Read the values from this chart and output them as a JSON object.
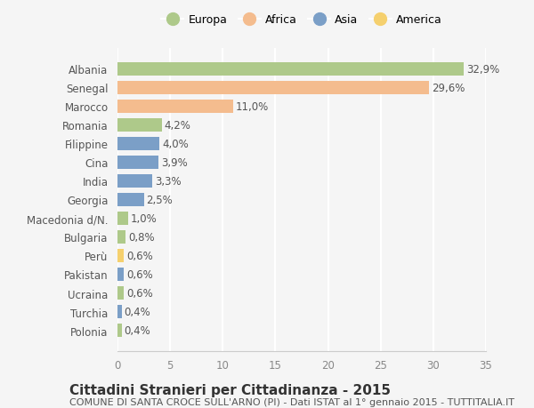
{
  "countries": [
    "Albania",
    "Senegal",
    "Marocco",
    "Romania",
    "Filippine",
    "Cina",
    "India",
    "Georgia",
    "Macedonia d/N.",
    "Bulgaria",
    "Perù",
    "Pakistan",
    "Ucraina",
    "Turchia",
    "Polonia"
  ],
  "values": [
    32.9,
    29.6,
    11.0,
    4.2,
    4.0,
    3.9,
    3.3,
    2.5,
    1.0,
    0.8,
    0.6,
    0.6,
    0.6,
    0.4,
    0.4
  ],
  "labels": [
    "32,9%",
    "29,6%",
    "11,0%",
    "4,2%",
    "4,0%",
    "3,9%",
    "3,3%",
    "2,5%",
    "1,0%",
    "0,8%",
    "0,6%",
    "0,6%",
    "0,6%",
    "0,4%",
    "0,4%"
  ],
  "continents": [
    "Europa",
    "Africa",
    "Africa",
    "Europa",
    "Asia",
    "Asia",
    "Asia",
    "Asia",
    "Europa",
    "Europa",
    "America",
    "Asia",
    "Europa",
    "Asia",
    "Europa"
  ],
  "colors": {
    "Europa": "#aec98a",
    "Africa": "#f4bc8e",
    "Asia": "#7b9fc7",
    "America": "#f5d06e"
  },
  "legend_order": [
    "Europa",
    "Africa",
    "Asia",
    "America"
  ],
  "title": "Cittadini Stranieri per Cittadinanza - 2015",
  "subtitle": "COMUNE DI SANTA CROCE SULL'ARNO (PI) - Dati ISTAT al 1° gennaio 2015 - TUTTITALIA.IT",
  "xlim": [
    0,
    35
  ],
  "xticks": [
    0,
    5,
    10,
    15,
    20,
    25,
    30,
    35
  ],
  "background_color": "#f5f5f5",
  "grid_color": "#ffffff",
  "title_fontsize": 11,
  "subtitle_fontsize": 8,
  "label_fontsize": 8.5
}
